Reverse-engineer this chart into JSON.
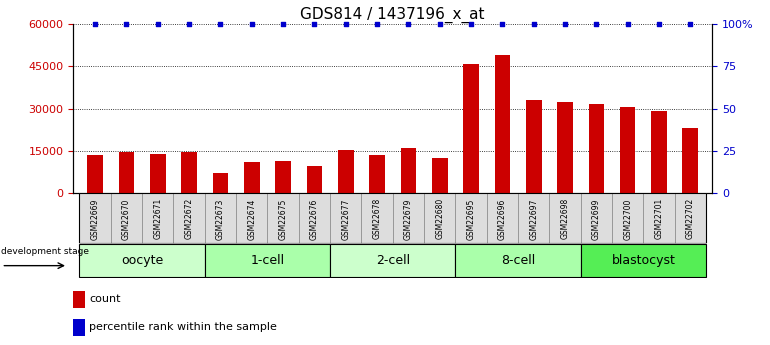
{
  "title": "GDS814 / 1437196_x_at",
  "samples": [
    "GSM22669",
    "GSM22670",
    "GSM22671",
    "GSM22672",
    "GSM22673",
    "GSM22674",
    "GSM22675",
    "GSM22676",
    "GSM22677",
    "GSM22678",
    "GSM22679",
    "GSM22680",
    "GSM22695",
    "GSM22696",
    "GSM22697",
    "GSM22698",
    "GSM22699",
    "GSM22700",
    "GSM22701",
    "GSM22702"
  ],
  "counts": [
    13500,
    14500,
    13800,
    14500,
    7000,
    11000,
    11500,
    9500,
    15500,
    13500,
    16000,
    12500,
    46000,
    49000,
    33000,
    32500,
    31500,
    30500,
    29000,
    23000
  ],
  "percentiles": [
    100,
    100,
    100,
    100,
    100,
    100,
    100,
    100,
    100,
    100,
    100,
    100,
    100,
    100,
    100,
    100,
    100,
    100,
    100,
    100
  ],
  "groups": [
    {
      "label": "oocyte",
      "start": 0,
      "end": 4,
      "color": "#ccffcc"
    },
    {
      "label": "1-cell",
      "start": 4,
      "end": 8,
      "color": "#aaffaa"
    },
    {
      "label": "2-cell",
      "start": 8,
      "end": 12,
      "color": "#ccffcc"
    },
    {
      "label": "8-cell",
      "start": 12,
      "end": 16,
      "color": "#aaffaa"
    },
    {
      "label": "blastocyst",
      "start": 16,
      "end": 20,
      "color": "#55ee55"
    }
  ],
  "bar_color": "#cc0000",
  "percentile_color": "#0000cc",
  "left_ylim": [
    0,
    60000
  ],
  "left_yticks": [
    0,
    15000,
    30000,
    45000,
    60000
  ],
  "right_ylim": [
    0,
    100
  ],
  "right_yticks": [
    0,
    25,
    50,
    75,
    100
  ],
  "tick_label_color_left": "#cc0000",
  "tick_label_color_right": "#0000cc",
  "legend_count_label": "count",
  "legend_percentile_label": "percentile rank within the sample",
  "dev_stage_label": "development stage",
  "title_fontsize": 11,
  "axis_fontsize": 8,
  "group_label_fontsize": 9,
  "sample_cell_color": "#dddddd",
  "sample_cell_edge": "#888888"
}
